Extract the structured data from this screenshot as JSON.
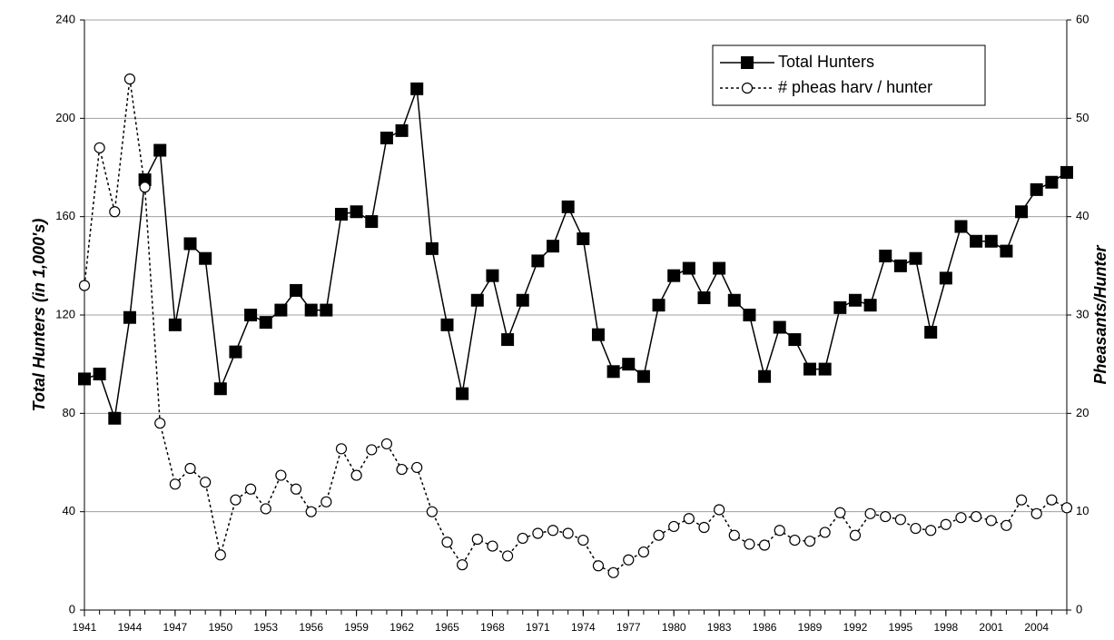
{
  "chart_data": {
    "type": "line",
    "y_label": "Total Hunters (in 1,000's)",
    "y2_label": "Pheasants/Hunter",
    "x": [
      1941,
      1942,
      1943,
      1944,
      1945,
      1946,
      1947,
      1948,
      1949,
      1950,
      1951,
      1952,
      1953,
      1954,
      1955,
      1956,
      1957,
      1958,
      1959,
      1960,
      1961,
      1962,
      1963,
      1964,
      1965,
      1966,
      1967,
      1968,
      1969,
      1970,
      1971,
      1972,
      1973,
      1974,
      1975,
      1976,
      1977,
      1978,
      1979,
      1980,
      1981,
      1982,
      1983,
      1984,
      1985,
      1986,
      1987,
      1988,
      1989,
      1990,
      1991,
      1992,
      1993,
      1994,
      1995,
      1996,
      1997,
      1998,
      1999,
      2000,
      2001,
      2002,
      2003,
      2004,
      2005,
      2006
    ],
    "series": [
      {
        "name": "Total Hunters",
        "color": "#000000",
        "marker": "square",
        "line_style": "solid",
        "values": [
          94,
          96,
          78,
          119,
          175,
          187,
          116,
          149,
          143,
          90,
          105,
          120,
          117,
          122,
          130,
          122,
          122,
          161,
          162,
          158,
          192,
          195,
          212,
          147,
          116,
          88,
          126,
          136,
          110,
          126,
          142,
          148,
          164,
          151,
          112,
          97,
          100,
          95,
          124,
          136,
          139,
          127,
          139,
          126,
          120,
          95,
          115,
          110,
          98,
          98,
          123,
          126,
          124,
          144,
          140,
          143,
          113,
          135,
          156,
          150,
          150,
          146,
          162,
          171,
          174,
          178
        ]
      },
      {
        "name": "# pheas harv / hunter",
        "color": "#000000",
        "marker": "circle",
        "line_style": "dotted",
        "axis": "y2",
        "values": [
          33,
          47,
          40.5,
          54,
          43,
          19,
          12.8,
          14.4,
          13,
          5.6,
          11.2,
          12.3,
          10.3,
          13.7,
          12.3,
          10,
          11,
          16.4,
          13.7,
          16.3,
          16.9,
          14.3,
          14.5,
          10,
          6.9,
          4.6,
          7.2,
          6.5,
          5.5,
          7.3,
          7.8,
          8.1,
          7.8,
          7.1,
          4.5,
          3.8,
          5.1,
          5.9,
          7.6,
          8.5,
          9.3,
          8.4,
          10.2,
          7.6,
          6.7,
          6.6,
          8.1,
          7.1,
          7,
          7.9,
          9.9,
          7.6,
          9.8,
          9.5,
          9.2,
          8.3,
          8.1,
          8.7,
          9.4,
          9.5,
          9.1,
          8.6,
          11.2,
          9.8,
          11.2,
          10.4
        ]
      }
    ],
    "xlim": [
      1941,
      2006
    ],
    "xticks": [
      1941,
      1944,
      1947,
      1950,
      1953,
      1956,
      1959,
      1962,
      1965,
      1968,
      1971,
      1974,
      1977,
      1980,
      1983,
      1986,
      1989,
      1992,
      1995,
      1998,
      2001,
      2004
    ],
    "ylim": [
      0,
      240
    ],
    "yticks": [
      0,
      40,
      80,
      120,
      160,
      200,
      240
    ],
    "y2lim": [
      0,
      60
    ],
    "y2ticks": [
      0,
      10,
      20,
      30,
      40,
      50,
      60
    ],
    "grid": true,
    "legend": "upper right"
  }
}
